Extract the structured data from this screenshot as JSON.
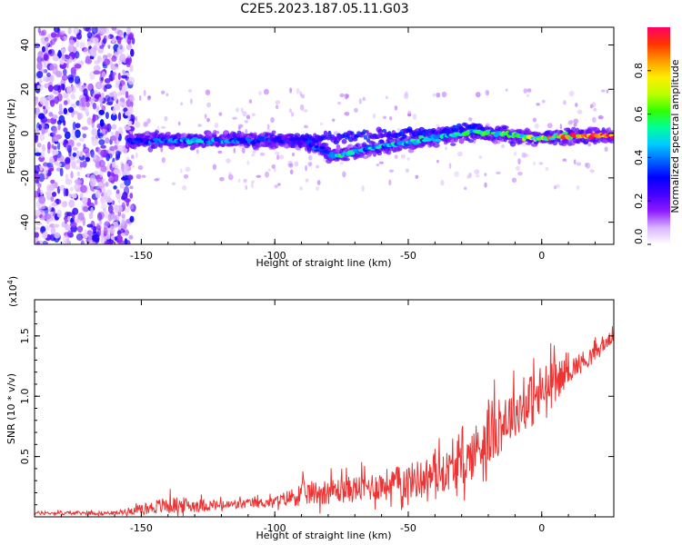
{
  "title": "C2E5.2023.187.05.11.G03",
  "chart_data": [
    {
      "type": "heatmap",
      "xlabel": "Height of straight line (km)",
      "ylabel": "Frequency (Hz)",
      "xlim": [
        -190,
        27
      ],
      "ylim": [
        -50,
        48
      ],
      "x_ticks": [
        -150,
        -100,
        -50,
        0
      ],
      "y_ticks": [
        -40,
        -20,
        0,
        20,
        40
      ],
      "colorbar": {
        "label": "Normalized spectral amplitude",
        "range": [
          0,
          1
        ],
        "ticks": [
          "0.0",
          "0.2",
          "0.4",
          "0.6",
          "0.8"
        ],
        "tick_values": [
          0.0,
          0.2,
          0.4,
          0.6,
          0.8
        ],
        "colors": [
          "#ffffff",
          "#d9b3ff",
          "#8c1aff",
          "#4400ff",
          "#0000ff",
          "#0066ff",
          "#00ccff",
          "#00ff99",
          "#33ff00",
          "#bbff00",
          "#ffee00",
          "#ff9900",
          "#ff3300",
          "#ff0066"
        ]
      },
      "ridge": {
        "description_points_x": [
          -155,
          -130,
          -100,
          -90,
          -78,
          -60,
          -40,
          -25,
          -10,
          0,
          10,
          25
        ],
        "frequency_y": [
          -3,
          -3,
          -3,
          -3,
          -10,
          -6,
          -2,
          1,
          -1,
          -2,
          -1,
          -1
        ],
        "amplitude": [
          0.35,
          0.45,
          0.35,
          0.3,
          0.5,
          0.5,
          0.5,
          0.55,
          0.6,
          0.75,
          0.9,
          0.95
        ]
      }
    },
    {
      "type": "line",
      "xlabel": "Height of straight line (km)",
      "ylabel": "SNR (10 * v/v)",
      "y_unit": "(x10",
      "y_unit_exp": "4",
      "y_unit_close": ")",
      "xlim": [
        -190,
        27
      ],
      "ylim": [
        0,
        1.8
      ],
      "x_ticks": [
        -150,
        -100,
        -50,
        0
      ],
      "y_ticks": [
        "0.5",
        "1.0",
        "1.5"
      ],
      "y_tick_values": [
        0.5,
        1.0,
        1.5
      ],
      "color": "#ee3333",
      "envelope": {
        "x": [
          -190,
          -160,
          -150,
          -140,
          -120,
          -100,
          -90,
          -70,
          -50,
          -30,
          -20,
          -10,
          0,
          10,
          20,
          27
        ],
        "baseline": [
          0.03,
          0.03,
          0.06,
          0.09,
          0.09,
          0.12,
          0.18,
          0.22,
          0.28,
          0.4,
          0.65,
          0.85,
          1.0,
          1.2,
          1.35,
          1.5
        ],
        "amplitude": [
          0.03,
          0.03,
          0.08,
          0.15,
          0.08,
          0.08,
          0.2,
          0.22,
          0.3,
          0.35,
          0.55,
          0.4,
          0.5,
          0.2,
          0.15,
          0.1
        ]
      }
    }
  ]
}
